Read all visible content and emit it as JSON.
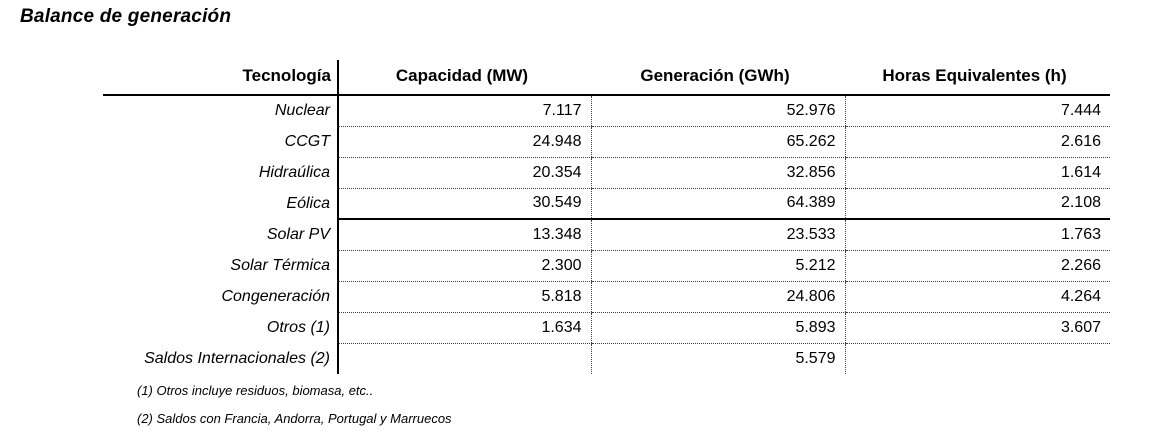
{
  "title": "Balance de generación",
  "table": {
    "columns": [
      "Tecnología",
      "Capacidad (MW)",
      "Generación (GWh)",
      "Horas Equivalentes (h)"
    ],
    "rows": [
      {
        "tecnologia": "Nuclear",
        "capacidad": "7.117",
        "generacion": "52.976",
        "horas": "7.444"
      },
      {
        "tecnologia": "CCGT",
        "capacidad": "24.948",
        "generacion": "65.262",
        "horas": "2.616"
      },
      {
        "tecnologia": "Hidraúlica",
        "capacidad": "20.354",
        "generacion": "32.856",
        "horas": "1.614"
      },
      {
        "tecnologia": "Eólica",
        "capacidad": "30.549",
        "generacion": "64.389",
        "horas": "2.108"
      },
      {
        "tecnologia": "Solar PV",
        "capacidad": "13.348",
        "generacion": "23.533",
        "horas": "1.763"
      },
      {
        "tecnologia": "Solar Térmica",
        "capacidad": "2.300",
        "generacion": "5.212",
        "horas": "2.266"
      },
      {
        "tecnologia": "Congeneración",
        "capacidad": "5.818",
        "generacion": "24.806",
        "horas": "4.264"
      },
      {
        "tecnologia": "Otros (1)",
        "capacidad": "1.634",
        "generacion": "5.893",
        "horas": "3.607"
      },
      {
        "tecnologia": "Saldos Internacionales (2)",
        "capacidad": "",
        "generacion": "5.579",
        "horas": ""
      }
    ],
    "thick_divider_after_row": "Eólica"
  },
  "footnotes": [
    "(1) Otros incluye residuos, biomasa, etc..",
    "(2) Saldos con Francia, Andorra, Portugal y Marruecos"
  ],
  "colors": {
    "text": "#000000",
    "background": "#ffffff",
    "border_solid": "#000000",
    "border_dotted": "#404040"
  }
}
